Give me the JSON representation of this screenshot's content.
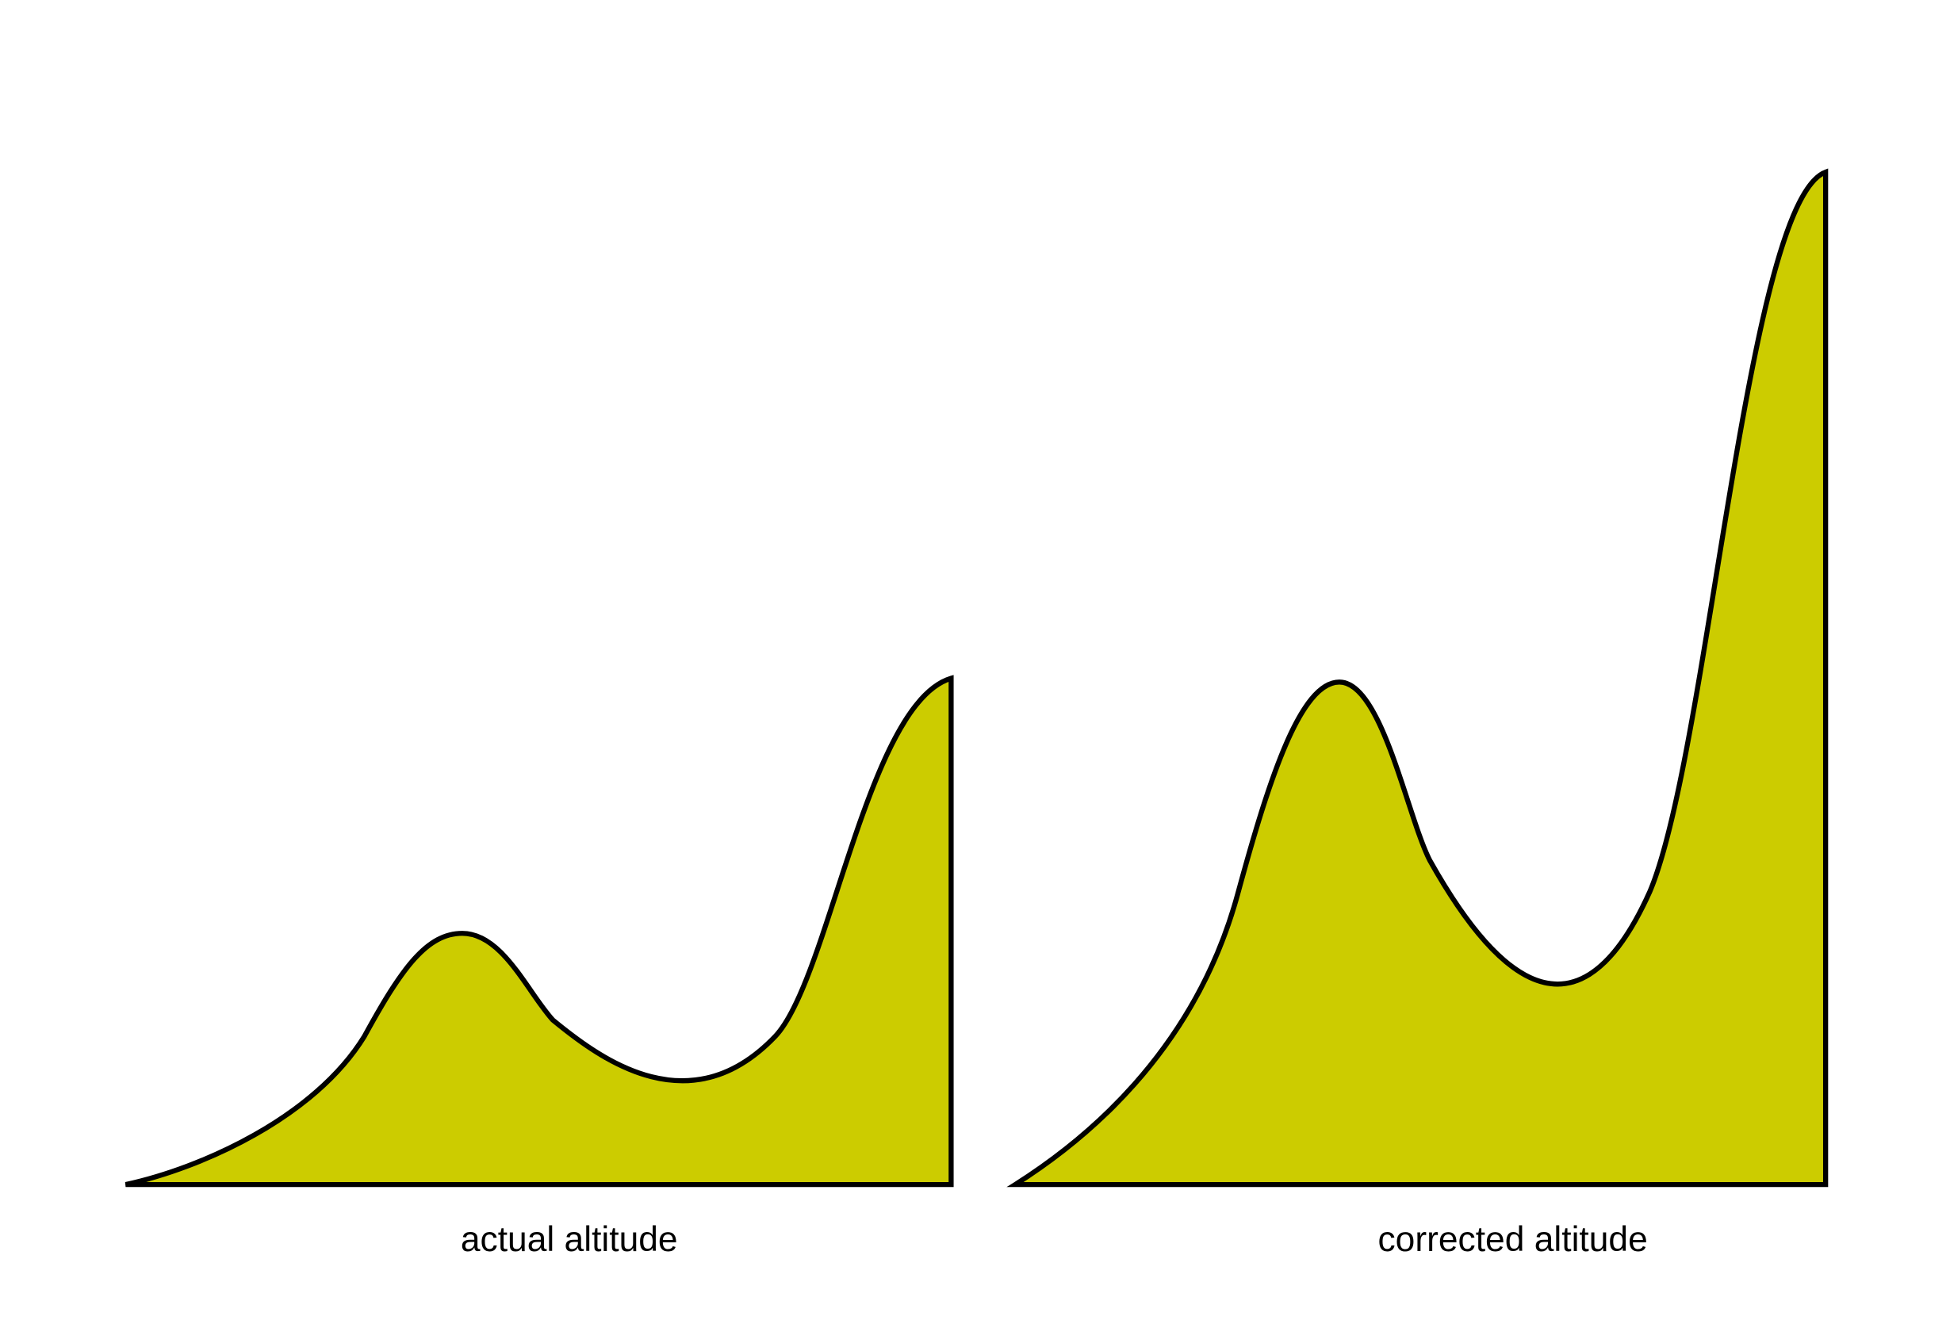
{
  "labels": {
    "left": "actual altitude",
    "right": "corrected altitude"
  }
}
